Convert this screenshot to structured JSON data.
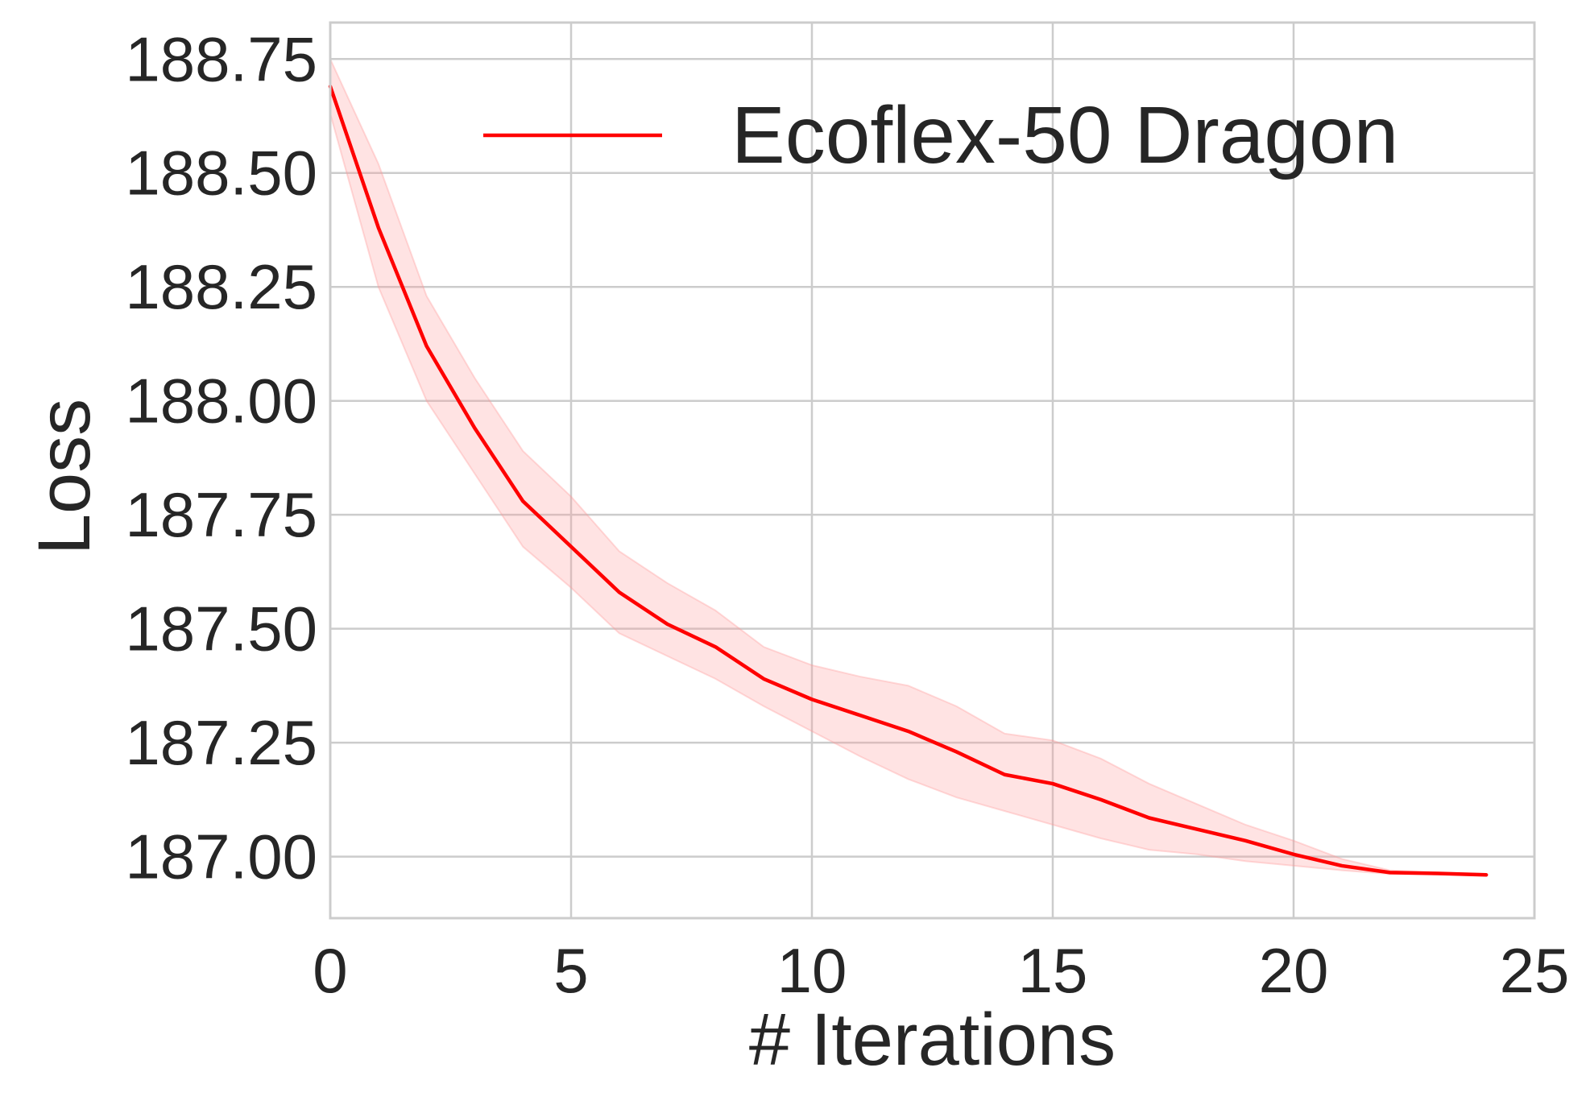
{
  "chart_data": {
    "type": "line",
    "title": "",
    "xlabel": "# Iterations",
    "ylabel": "Loss",
    "xlim": [
      0,
      25
    ],
    "ylim": [
      186.865,
      188.83
    ],
    "x_ticks": [
      0,
      5,
      10,
      15,
      20,
      25
    ],
    "x_tick_labels": [
      "0",
      "5",
      "10",
      "15",
      "20",
      "25"
    ],
    "y_ticks": [
      187.0,
      187.25,
      187.5,
      187.75,
      188.0,
      188.25,
      188.5,
      188.75
    ],
    "y_tick_labels": [
      "187.00",
      "187.25",
      "187.50",
      "187.75",
      "188.00",
      "188.25",
      "188.50",
      "188.75"
    ],
    "grid": true,
    "legend_position": "top-right",
    "series": [
      {
        "name": "Ecoflex-50 Dragon",
        "color": "#ff0000",
        "band_color": "#ff9999",
        "x": [
          0,
          1,
          2,
          3,
          4,
          5,
          6,
          7,
          8,
          9,
          10,
          11,
          12,
          13,
          14,
          15,
          16,
          17,
          18,
          19,
          20,
          21,
          22,
          23,
          24
        ],
        "y": [
          188.69,
          188.38,
          188.12,
          187.94,
          187.78,
          187.68,
          187.58,
          187.51,
          187.46,
          187.39,
          187.345,
          187.31,
          187.275,
          187.23,
          187.18,
          187.16,
          187.125,
          187.085,
          187.06,
          187.035,
          187.005,
          186.98,
          186.965,
          186.963,
          186.96
        ],
        "y_upper": [
          188.75,
          188.52,
          188.23,
          188.05,
          187.89,
          187.79,
          187.67,
          187.6,
          187.54,
          187.46,
          187.42,
          187.395,
          187.375,
          187.33,
          187.27,
          187.255,
          187.215,
          187.16,
          187.115,
          187.07,
          187.035,
          186.995,
          186.97,
          186.965,
          186.962
        ],
        "y_lower": [
          188.63,
          188.25,
          188.0,
          187.84,
          187.68,
          187.59,
          187.49,
          187.44,
          187.39,
          187.33,
          187.275,
          187.22,
          187.17,
          187.13,
          187.1,
          187.07,
          187.04,
          187.015,
          187.005,
          186.99,
          186.98,
          186.97,
          186.962,
          186.961,
          186.958
        ]
      }
    ]
  }
}
